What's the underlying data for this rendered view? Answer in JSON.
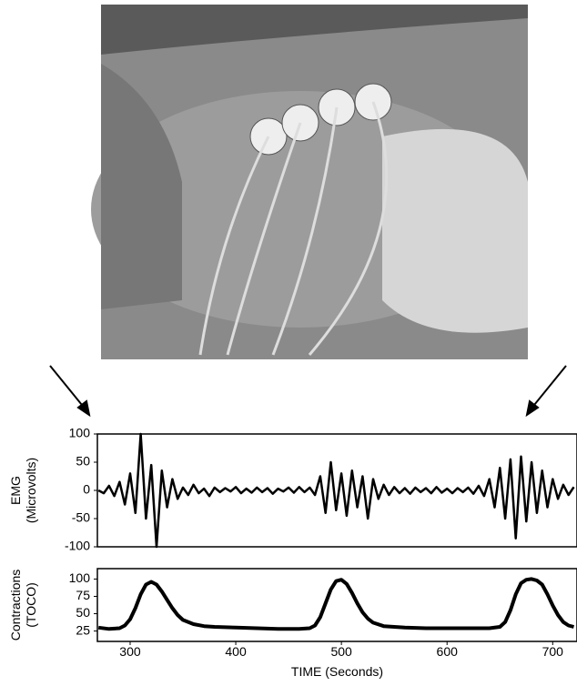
{
  "chart_data": [
    {
      "type": "line",
      "ylabel": [
        "EMG",
        "(Microvolts)"
      ],
      "xlim": [
        269,
        723
      ],
      "ylim": [
        -100,
        100
      ],
      "yticks": [
        -100,
        -50,
        0,
        50,
        100
      ],
      "series": [
        {
          "color": "#000000",
          "x": [
            270,
            275,
            280,
            285,
            290,
            295,
            300,
            305,
            310,
            315,
            320,
            325,
            330,
            335,
            340,
            345,
            350,
            355,
            360,
            365,
            370,
            375,
            380,
            385,
            390,
            395,
            400,
            405,
            410,
            415,
            420,
            425,
            430,
            435,
            440,
            445,
            450,
            455,
            460,
            465,
            470,
            475,
            480,
            485,
            490,
            495,
            500,
            505,
            510,
            515,
            520,
            525,
            530,
            535,
            540,
            545,
            550,
            555,
            560,
            565,
            570,
            575,
            580,
            585,
            590,
            595,
            600,
            605,
            610,
            615,
            620,
            625,
            630,
            635,
            640,
            645,
            650,
            655,
            660,
            665,
            670,
            675,
            680,
            685,
            690,
            695,
            700,
            705,
            710,
            715,
            720
          ],
          "values": [
            0,
            -5,
            8,
            -10,
            15,
            -25,
            30,
            -40,
            100,
            -50,
            45,
            -100,
            35,
            -30,
            20,
            -15,
            5,
            -8,
            10,
            -5,
            3,
            -10,
            5,
            -3,
            4,
            -2,
            6,
            -5,
            3,
            -4,
            5,
            -3,
            4,
            -6,
            3,
            -2,
            5,
            -4,
            6,
            -3,
            5,
            -8,
            25,
            -40,
            50,
            -35,
            30,
            -45,
            35,
            -30,
            25,
            -50,
            20,
            -15,
            10,
            -8,
            6,
            -5,
            4,
            -6,
            5,
            -3,
            4,
            -5,
            6,
            -4,
            3,
            -5,
            4,
            -3,
            5,
            -6,
            8,
            -10,
            20,
            -30,
            40,
            -50,
            55,
            -85,
            60,
            -55,
            50,
            -40,
            35,
            -30,
            20,
            -15,
            10,
            -8,
            6
          ]
        }
      ]
    },
    {
      "type": "line",
      "ylabel": [
        "Contractions",
        "(TOCO)"
      ],
      "xlabel": "TIME (Seconds)",
      "xlim": [
        269,
        723
      ],
      "xticks": [
        300,
        400,
        500,
        600,
        700
      ],
      "ylim": [
        10,
        115
      ],
      "yticks": [
        25,
        50,
        75,
        100
      ],
      "series": [
        {
          "color": "#000000",
          "x": [
            270,
            280,
            290,
            295,
            300,
            305,
            310,
            315,
            320,
            325,
            330,
            335,
            340,
            345,
            350,
            360,
            370,
            380,
            400,
            420,
            440,
            460,
            470,
            475,
            480,
            485,
            490,
            495,
            500,
            505,
            510,
            515,
            520,
            525,
            530,
            540,
            560,
            580,
            600,
            620,
            640,
            650,
            655,
            660,
            665,
            670,
            675,
            680,
            685,
            690,
            695,
            700,
            705,
            710,
            715,
            720
          ],
          "values": [
            30,
            28,
            29,
            33,
            42,
            58,
            78,
            92,
            96,
            92,
            82,
            70,
            58,
            48,
            41,
            35,
            32,
            31,
            30,
            29,
            28,
            28,
            29,
            33,
            45,
            65,
            85,
            97,
            99,
            93,
            80,
            65,
            52,
            43,
            37,
            32,
            30,
            29,
            29,
            29,
            29,
            31,
            38,
            55,
            78,
            94,
            99,
            100,
            98,
            92,
            78,
            62,
            48,
            38,
            33,
            31
          ]
        }
      ]
    }
  ]
}
